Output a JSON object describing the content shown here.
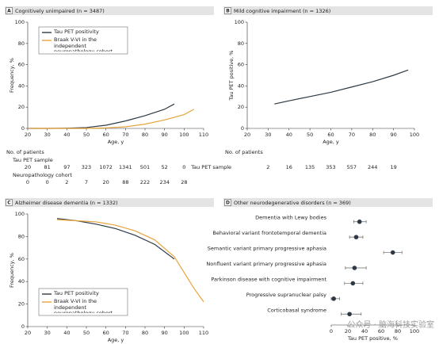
{
  "chart_data": [
    {
      "type": "line",
      "letter": "A",
      "title": "Cognitively unimpaired (n = 3487)",
      "x_label": "Age, y",
      "y_label": "Frequency, %",
      "xlim": [
        20,
        110
      ],
      "xticks": [
        20,
        30,
        40,
        50,
        60,
        70,
        80,
        90,
        100,
        110
      ],
      "ylim": [
        0,
        100
      ],
      "yticks": [
        0,
        20,
        40,
        60,
        80,
        100
      ],
      "legend": "upper left",
      "series": [
        {
          "name": "Tau PET positivity",
          "color": "#2d3a45",
          "x": [
            20,
            30,
            40,
            50,
            60,
            70,
            80,
            90,
            95
          ],
          "values": [
            0,
            0,
            0.2,
            0.8,
            3,
            7,
            12,
            18,
            23
          ]
        },
        {
          "name": "Braak V-VI in the independent neuropathology cohort",
          "color": "#e8a33d",
          "x": [
            20,
            30,
            40,
            50,
            60,
            70,
            80,
            90,
            100,
            105
          ],
          "values": [
            0,
            0,
            0,
            0,
            0.5,
            1.5,
            4,
            8,
            13,
            18
          ]
        }
      ],
      "patients_title": "No. of patients",
      "patient_rows": [
        {
          "label": "Tau PET sample",
          "values": [
            20,
            81,
            97,
            323,
            1072,
            1341,
            501,
            52,
            0
          ]
        },
        {
          "label": "Neuropathology cohort",
          "values": [
            0,
            0,
            2,
            7,
            20,
            88,
            222,
            234,
            28
          ]
        }
      ]
    },
    {
      "type": "line",
      "letter": "B",
      "title": "Mild cognitive impairment (n = 1326)",
      "x_label": "Age, y",
      "y_label": "Tau PET positive, %",
      "xlim": [
        20,
        100
      ],
      "xticks": [
        20,
        30,
        40,
        50,
        60,
        70,
        80,
        90,
        100
      ],
      "ylim": [
        0,
        100
      ],
      "yticks": [
        0,
        20,
        40,
        60,
        80,
        100
      ],
      "series": [
        {
          "color": "#2d3a45",
          "x": [
            33,
            40,
            50,
            60,
            70,
            80,
            90,
            97
          ],
          "values": [
            23,
            26,
            30,
            34,
            39,
            44,
            50,
            55
          ]
        }
      ],
      "patients_title": "No. of patients",
      "patient_rows": [
        {
          "label": "Tau PET sample",
          "values": [
            2,
            16,
            135,
            353,
            557,
            244,
            19
          ]
        }
      ]
    },
    {
      "type": "line",
      "letter": "C",
      "title": "Alzheimer disease dementia (n = 1332)",
      "x_label": "Age, y",
      "y_label": "Frequency, %",
      "xlim": [
        20,
        110
      ],
      "xticks": [
        20,
        30,
        40,
        50,
        60,
        70,
        80,
        90,
        100,
        110
      ],
      "ylim": [
        0,
        100
      ],
      "yticks": [
        0,
        20,
        40,
        60,
        80,
        100
      ],
      "legend": "lower left",
      "series": [
        {
          "name": "Tau PET positivity",
          "color": "#2d3a45",
          "x": [
            35,
            45,
            55,
            65,
            75,
            85,
            95
          ],
          "values": [
            96,
            94,
            91,
            87,
            81,
            73,
            60
          ]
        },
        {
          "name": "Braak V-VI in the independent neuropathology cohort",
          "color": "#e8a33d",
          "x": [
            35,
            45,
            55,
            65,
            75,
            85,
            95,
            100,
            105,
            110
          ],
          "values": [
            95,
            94,
            93,
            90,
            85,
            77,
            62,
            48,
            34,
            22
          ]
        }
      ]
    },
    {
      "type": "dot",
      "letter": "D",
      "title": "Other neurodegenerative disorders (n = 369)",
      "x_label": "Tau PET positive, %",
      "xlim": [
        0,
        100
      ],
      "xticks": [
        0,
        20,
        40,
        60,
        80,
        100
      ],
      "color": "#2d3a45",
      "categories": [
        "Dementia with Lewy bodies",
        "Behavioral variant frontotemporal dementia",
        "Semantic variant primary progressive aphasia",
        "Nonfluent variant primary progressive aphasia",
        "Parkinson disease with cognitive impairment",
        "Progressive supranuclear palsy",
        "Corticobasal syndrome"
      ],
      "values": [
        34,
        30,
        74,
        28,
        26,
        3,
        22
      ],
      "lower": [
        27,
        22,
        63,
        17,
        16,
        0,
        12
      ],
      "upper": [
        42,
        38,
        85,
        42,
        38,
        10,
        36
      ]
    }
  ],
  "watermark": "公众号 · 脑海科技实验室"
}
